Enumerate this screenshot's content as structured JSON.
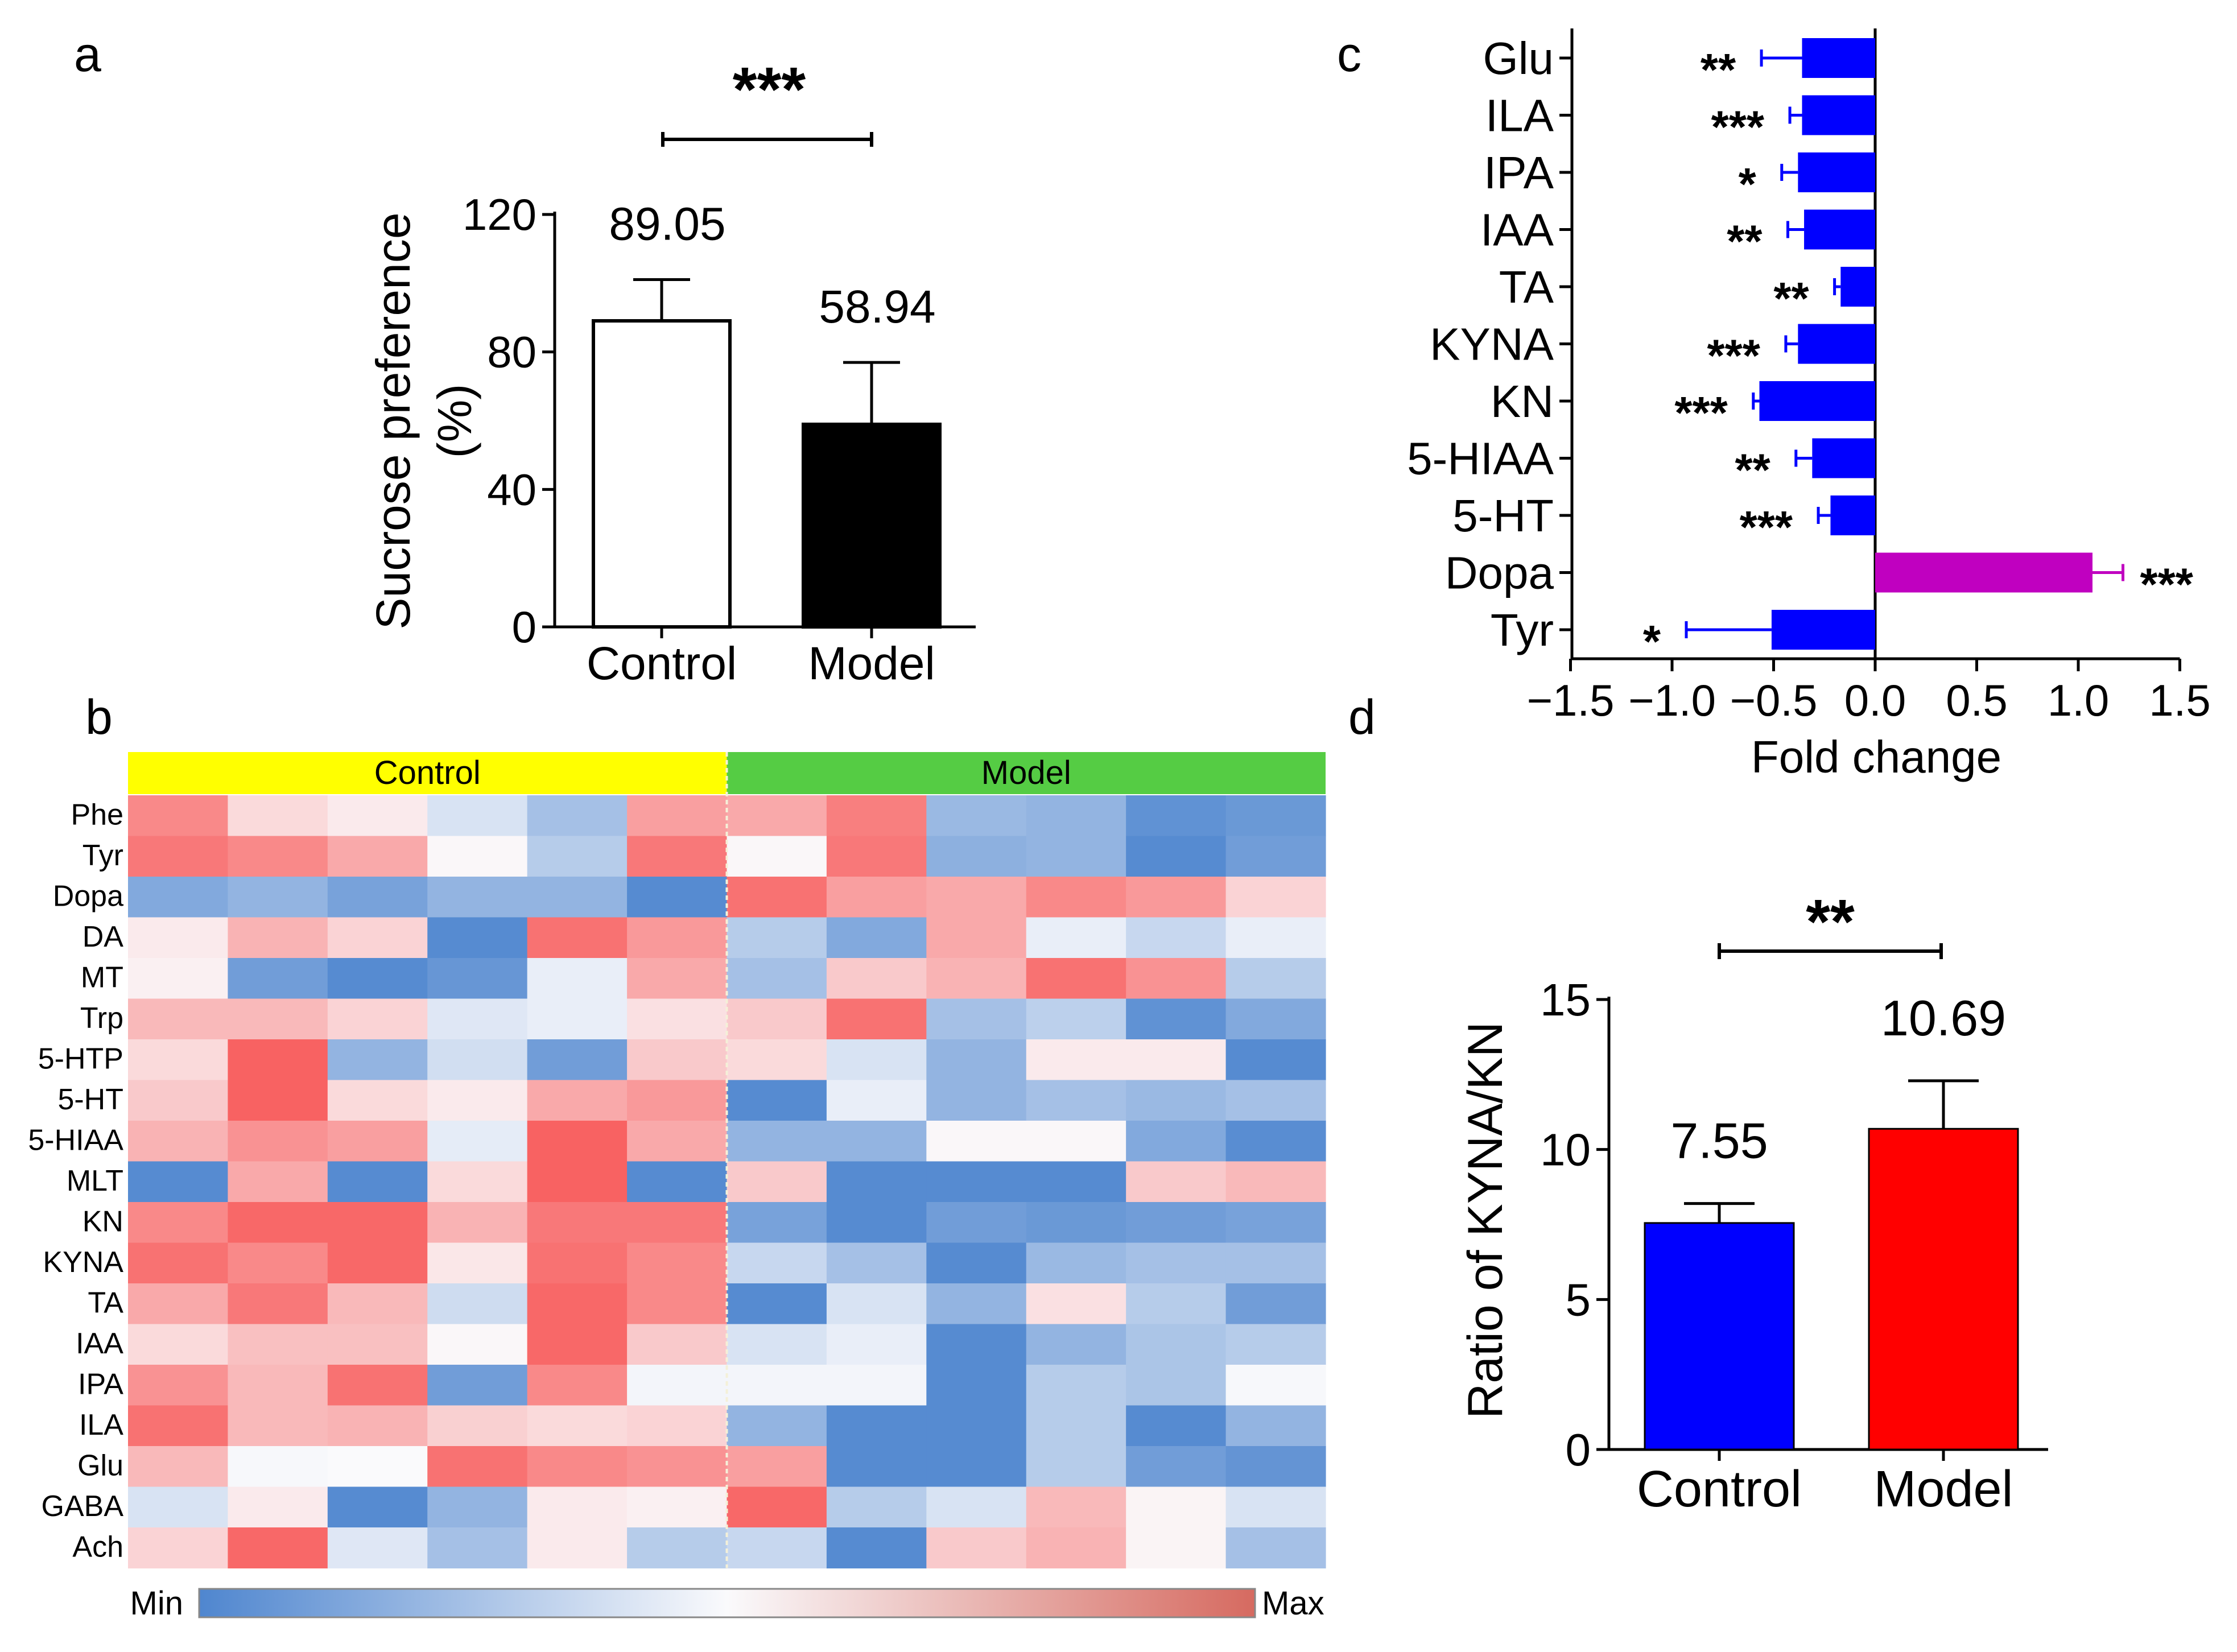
{
  "panels": {
    "a": "a",
    "b": "b",
    "c": "c",
    "d": "d"
  },
  "colors": {
    "blue": "#0000ff",
    "red": "#ff0000",
    "magenta": "#c000c0",
    "control_band": "#ffff00",
    "model_band": "#55cc44",
    "heat_min": "#4f86cf",
    "heat_mid": "#fafafc",
    "heat_max": "#f85858"
  },
  "chart_data": [
    {
      "id": "a",
      "type": "bar",
      "categories": [
        "Control",
        "Model"
      ],
      "values": [
        89.05,
        58.94
      ],
      "errors": [
        12,
        18
      ],
      "value_labels": [
        "89.05",
        "58.94"
      ],
      "bar_styles": [
        "open",
        "filled"
      ],
      "ylabel_line1": "Sucrose preference",
      "ylabel_line2": "(%)",
      "ylim": [
        0,
        120
      ],
      "yticks": [
        0,
        40,
        80,
        120
      ],
      "significance": "***"
    },
    {
      "id": "b",
      "type": "heatmap",
      "groups": [
        {
          "label": "Control",
          "columns": 6
        },
        {
          "label": "Model",
          "columns": 6
        }
      ],
      "rows": [
        "Phe",
        "Tyr",
        "Dopa",
        "DA",
        "MT",
        "Trp",
        "5-HTP",
        "5-HT",
        "5-HIAA",
        "MLT",
        "KN",
        "KYNA",
        "TA",
        "IAA",
        "IPA",
        "ILA",
        "Glu",
        "GABA",
        "Ach"
      ],
      "values": [
        [
          0.85,
          0.6,
          0.55,
          0.4,
          0.25,
          0.78,
          0.75,
          0.88,
          0.22,
          0.2,
          0.05,
          0.08
        ],
        [
          0.9,
          0.85,
          0.75,
          0.51,
          0.3,
          0.9,
          0.51,
          0.9,
          0.18,
          0.2,
          0.02,
          0.1
        ],
        [
          0.15,
          0.2,
          0.12,
          0.2,
          0.2,
          0.02,
          0.92,
          0.78,
          0.75,
          0.85,
          0.8,
          0.62
        ],
        [
          0.55,
          0.72,
          0.62,
          0.02,
          0.92,
          0.8,
          0.3,
          0.15,
          0.75,
          0.45,
          0.35,
          0.45
        ],
        [
          0.53,
          0.1,
          0.02,
          0.07,
          0.45,
          0.75,
          0.25,
          0.65,
          0.72,
          0.92,
          0.82,
          0.3
        ],
        [
          0.7,
          0.7,
          0.62,
          0.42,
          0.45,
          0.58,
          0.65,
          0.92,
          0.25,
          0.32,
          0.05,
          0.15
        ],
        [
          0.6,
          0.97,
          0.2,
          0.38,
          0.1,
          0.65,
          0.6,
          0.4,
          0.2,
          0.55,
          0.55,
          0.02
        ],
        [
          0.65,
          0.97,
          0.6,
          0.55,
          0.75,
          0.8,
          0.02,
          0.45,
          0.2,
          0.25,
          0.22,
          0.25
        ],
        [
          0.72,
          0.82,
          0.78,
          0.44,
          0.97,
          0.75,
          0.2,
          0.2,
          0.51,
          0.51,
          0.15,
          0.03
        ],
        [
          0.02,
          0.75,
          0.02,
          0.6,
          0.97,
          0.02,
          0.65,
          0.02,
          0.02,
          0.02,
          0.65,
          0.7
        ],
        [
          0.85,
          0.95,
          0.95,
          0.72,
          0.9,
          0.9,
          0.12,
          0.02,
          0.1,
          0.08,
          0.1,
          0.12
        ],
        [
          0.92,
          0.85,
          0.95,
          0.56,
          0.92,
          0.85,
          0.35,
          0.25,
          0.02,
          0.22,
          0.25,
          0.25
        ],
        [
          0.75,
          0.9,
          0.7,
          0.37,
          0.95,
          0.85,
          0.02,
          0.4,
          0.2,
          0.58,
          0.3,
          0.1
        ],
        [
          0.6,
          0.68,
          0.68,
          0.51,
          0.95,
          0.65,
          0.4,
          0.45,
          0.02,
          0.2,
          0.27,
          0.3
        ],
        [
          0.82,
          0.7,
          0.92,
          0.1,
          0.85,
          0.48,
          0.48,
          0.48,
          0.02,
          0.3,
          0.27,
          0.49
        ],
        [
          0.92,
          0.7,
          0.72,
          0.63,
          0.6,
          0.62,
          0.2,
          0.02,
          0.02,
          0.3,
          0.02,
          0.2
        ],
        [
          0.7,
          0.49,
          0.5,
          0.92,
          0.85,
          0.82,
          0.78,
          0.02,
          0.02,
          0.3,
          0.1,
          0.06
        ],
        [
          0.4,
          0.55,
          0.02,
          0.2,
          0.55,
          0.53,
          0.95,
          0.3,
          0.4,
          0.7,
          0.52,
          0.4
        ],
        [
          0.62,
          0.95,
          0.42,
          0.25,
          0.55,
          0.3,
          0.35,
          0.02,
          0.65,
          0.72,
          0.52,
          0.25
        ]
      ],
      "colorbar": {
        "min_label": "Min",
        "max_label": "Max"
      }
    },
    {
      "id": "c",
      "type": "bar",
      "orientation": "horizontal",
      "categories": [
        "Glu",
        "ILA",
        "IPA",
        "IAA",
        "TA",
        "KYNA",
        "KN",
        "5-HIAA",
        "5-HT",
        "Dopa",
        "Tyr"
      ],
      "values": [
        -0.36,
        -0.36,
        -0.38,
        -0.35,
        -0.17,
        -0.38,
        -0.57,
        -0.31,
        -0.22,
        1.07,
        -0.51
      ],
      "errors": [
        0.2,
        0.06,
        0.08,
        0.08,
        0.03,
        0.06,
        0.03,
        0.08,
        0.06,
        0.15,
        0.42
      ],
      "significance": [
        "**",
        "***",
        "*",
        "**",
        "**",
        "***",
        "***",
        "**",
        "***",
        "***",
        "*"
      ],
      "xlabel": "Fold change",
      "xlim": [
        -1.5,
        1.5
      ],
      "xticks": [
        -1.5,
        -1.0,
        -0.5,
        0.0,
        0.5,
        1.0,
        1.5
      ],
      "xtick_labels": [
        "−1.5",
        "−1.0",
        "−0.5",
        "0.0",
        "0.5",
        "1.0",
        "1.5"
      ]
    },
    {
      "id": "d",
      "type": "bar",
      "categories": [
        "Control",
        "Model"
      ],
      "values": [
        7.55,
        10.69
      ],
      "errors": [
        0.65,
        1.6
      ],
      "value_labels": [
        "7.55",
        "10.69"
      ],
      "ylabel": "Ratio of KYNA/KN",
      "ylim": [
        0,
        15
      ],
      "yticks": [
        0,
        5,
        10,
        15
      ],
      "significance": "**"
    }
  ]
}
